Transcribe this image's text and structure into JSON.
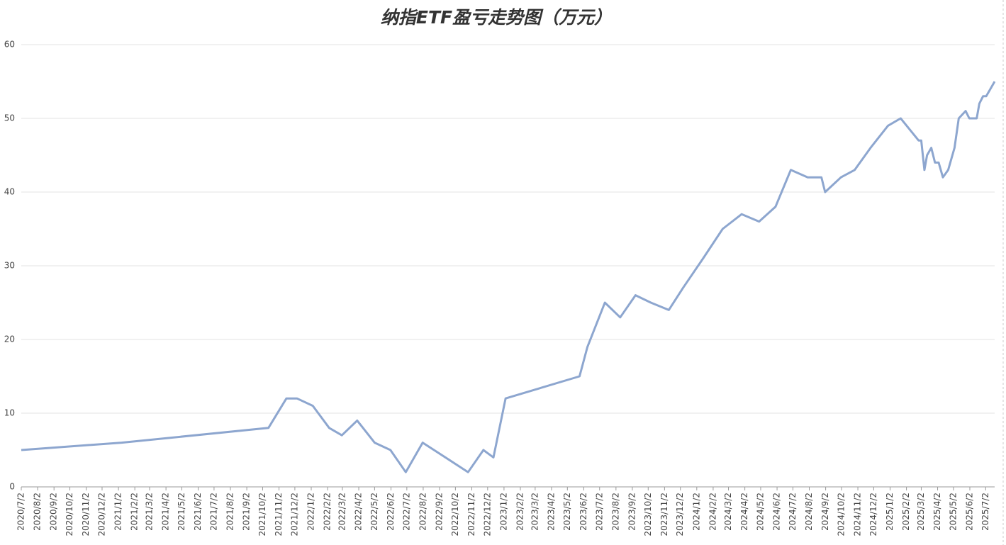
{
  "chart_data": {
    "type": "line",
    "title": "纳指ETF盈亏走势图（万元）",
    "x": [
      "2020/7/2",
      "2021/1/8",
      "2021/10/13",
      "2021/11/16",
      "2021/12/6",
      "2022/1/5",
      "2022/2/5",
      "2022/3/1",
      "2022/3/30",
      "2022/5/2",
      "2022/6/1",
      "2022/6/30",
      "2022/8/1",
      "2022/10/26",
      "2022/11/24",
      "2022/12/13",
      "2023/1/5",
      "2023/5/25",
      "2023/6/9",
      "2023/7/12",
      "2023/8/10",
      "2023/9/8",
      "2023/10/7",
      "2023/11/10",
      "2023/12/7",
      "2024/1/14",
      "2024/2/20",
      "2024/3/27",
      "2024/4/29",
      "2024/5/30",
      "2024/6/28",
      "2024/7/30",
      "2024/8/25",
      "2024/9/1",
      "2024/10/1",
      "2024/10/27",
      "2024/11/26",
      "2024/12/29",
      "2025/1/22",
      "2025/2/25",
      "2025/3/2",
      "2025/3/8",
      "2025/3/13",
      "2025/3/21",
      "2025/3/28",
      "2025/4/4",
      "2025/4/12",
      "2025/4/22",
      "2025/5/4",
      "2025/5/12",
      "2025/5/25",
      "2025/6/1",
      "2025/6/15",
      "2025/6/20",
      "2025/6/27",
      "2025/7/3",
      "2025/7/19"
    ],
    "series": [
      {
        "color": "#8da6cf",
        "values": [
          5,
          6,
          8,
          12,
          12,
          11,
          8,
          7,
          9,
          6,
          5,
          2,
          6,
          2,
          5,
          4,
          12,
          15,
          19,
          25,
          23,
          26,
          25,
          24,
          27,
          31,
          35,
          37,
          36,
          38,
          43,
          42,
          42,
          40,
          42,
          43,
          46,
          49,
          50,
          47,
          47,
          43,
          45,
          46,
          44,
          44,
          42,
          43,
          46,
          50,
          51,
          50,
          50,
          52,
          53,
          53,
          55
        ]
      }
    ],
    "xlim": [
      "2020/7/2",
      "2025/7/19"
    ],
    "xticks": [
      "2020/7/2",
      "2020/8/2",
      "2020/9/2",
      "2020/10/2",
      "2020/11/2",
      "2020/12/2",
      "2021/1/2",
      "2021/2/2",
      "2021/3/2",
      "2021/4/2",
      "2021/5/2",
      "2021/6/2",
      "2021/7/2",
      "2021/8/2",
      "2021/9/2",
      "2021/10/2",
      "2021/11/2",
      "2021/12/2",
      "2022/1/2",
      "2022/2/2",
      "2022/3/2",
      "2022/4/2",
      "2022/5/2",
      "2022/6/2",
      "2022/7/2",
      "2022/8/2",
      "2022/9/2",
      "2022/10/2",
      "2022/11/2",
      "2022/12/2",
      "2023/1/2",
      "2023/2/2",
      "2023/3/2",
      "2023/4/2",
      "2023/5/2",
      "2023/6/2",
      "2023/7/2",
      "2023/8/2",
      "2023/9/2",
      "2023/10/2",
      "2023/11/2",
      "2023/12/2",
      "2024/1/2",
      "2024/2/2",
      "2024/3/2",
      "2024/4/2",
      "2024/5/2",
      "2024/6/2",
      "2024/7/2",
      "2024/8/2",
      "2024/9/2",
      "2024/10/2",
      "2024/11/2",
      "2024/12/2",
      "2025/1/2",
      "2025/2/2",
      "2025/3/2",
      "2025/4/2",
      "2025/5/2",
      "2025/6/2",
      "2025/7/2"
    ],
    "ylim": [
      0,
      60
    ],
    "yticks": [
      0,
      10,
      20,
      30,
      40,
      50,
      60
    ],
    "grid": true
  }
}
